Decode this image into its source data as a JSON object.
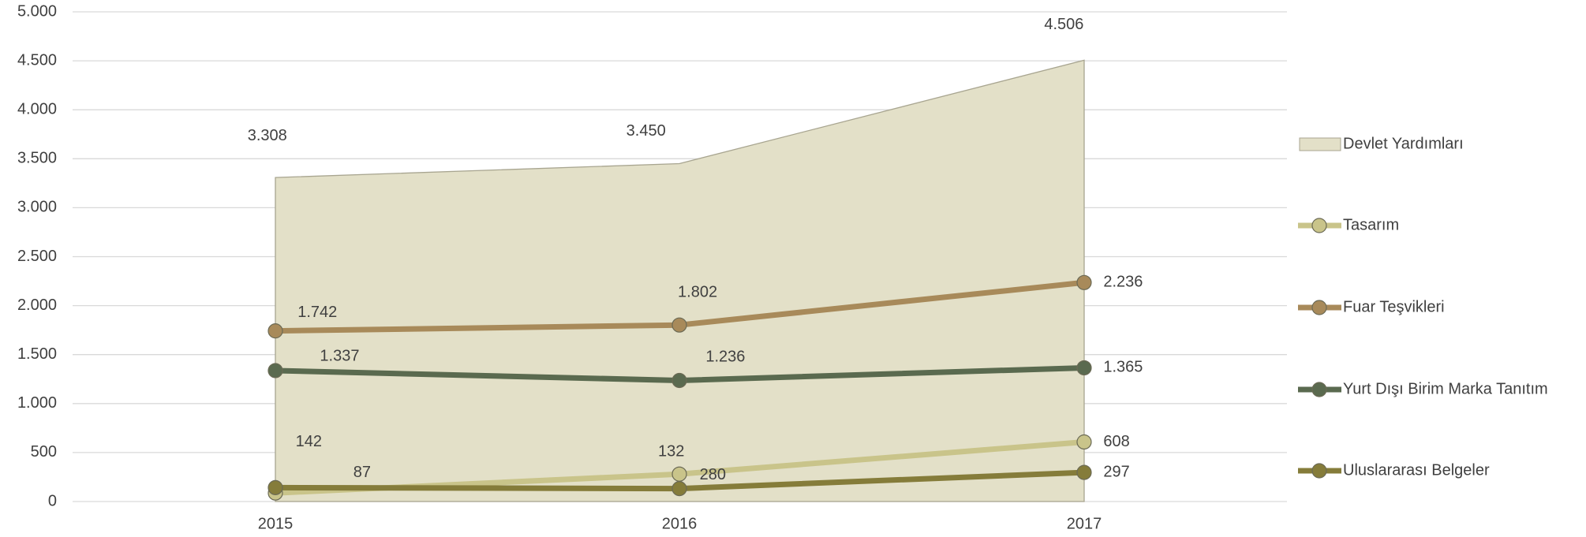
{
  "chart_data": {
    "type": "line",
    "categories": [
      "2015",
      "2016",
      "2017"
    ],
    "ylim": [
      0,
      5000
    ],
    "yticks": [
      0,
      500,
      {
        "value": 1000,
        "label": "1.000"
      },
      {
        "value": 1500,
        "label": "1.500"
      },
      {
        "value": 2000,
        "label": "2.000"
      },
      {
        "value": 2500,
        "label": "2.500"
      },
      {
        "value": 3000,
        "label": "3.000"
      },
      {
        "value": 3500,
        "label": "3.500"
      },
      {
        "value": 4000,
        "label": "4.000"
      },
      {
        "value": 4500,
        "label": "4.500"
      },
      {
        "value": 5000,
        "label": "5.000"
      }
    ],
    "grid": true,
    "legend": "right",
    "series": [
      {
        "name": "Devlet Yardımları",
        "type": "area",
        "color": "#e3e0c8",
        "values": [
          3308,
          3450,
          4506
        ],
        "value_labels": [
          "3.308",
          "3.450",
          "4.506"
        ]
      },
      {
        "name": "Tasarım",
        "type": "line",
        "color": "#c9c48a",
        "values": [
          87,
          280,
          608
        ]
      },
      {
        "name": "Fuar Teşvikleri",
        "type": "line",
        "color": "#a88a5a",
        "values": [
          1742,
          1802,
          2236
        ],
        "value_labels": [
          "1.742",
          "1.802",
          "2.236"
        ]
      },
      {
        "name": "Yurt Dışı Birim Marka Tanıtım",
        "type": "line",
        "color": "#5a6a4f",
        "values": [
          1337,
          1236,
          1365
        ],
        "value_labels": [
          "1.337",
          "1.236",
          "1.365"
        ]
      },
      {
        "name": "Uluslararası Belgeler",
        "type": "line",
        "color": "#857c3a",
        "values": [
          142,
          132,
          297
        ]
      }
    ]
  }
}
